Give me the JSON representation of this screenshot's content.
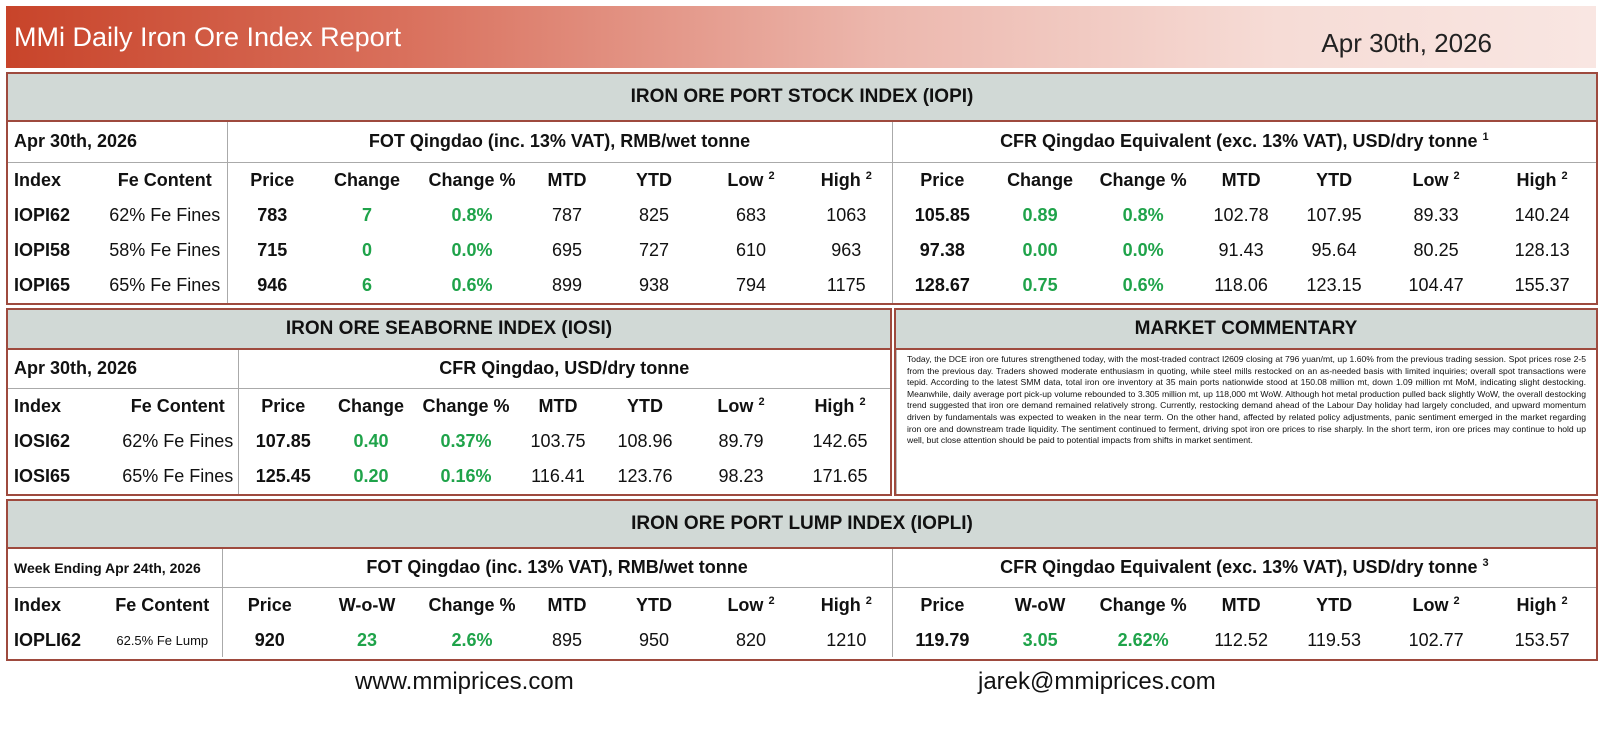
{
  "header": {
    "title": "MMi Daily Iron Ore Index Report",
    "date": "Apr 30th, 2026"
  },
  "iopi": {
    "title": "IRON ORE PORT STOCK INDEX (IOPI)",
    "date": "Apr 30th, 2026",
    "fot_title": "FOT Qingdao (inc. 13% VAT), RMB/wet tonne",
    "cfr_title": "CFR Qingdao Equivalent (exc. 13% VAT), USD/dry tonne",
    "cfr_note": "1",
    "headers": {
      "index": "Index",
      "fe": "Fe Content",
      "price": "Price",
      "change": "Change",
      "change_pct": "Change %",
      "mtd": "MTD",
      "ytd": "YTD",
      "low": "Low",
      "high": "High",
      "note": "2"
    },
    "rows": [
      {
        "index": "IOPI62",
        "fe": "62% Fe Fines",
        "fot": [
          "783",
          "7",
          "0.8%",
          "787",
          "825",
          "683",
          "1063"
        ],
        "cfr": [
          "105.85",
          "0.89",
          "0.8%",
          "102.78",
          "107.95",
          "89.33",
          "140.24"
        ]
      },
      {
        "index": "IOPI58",
        "fe": "58% Fe Fines",
        "fot": [
          "715",
          "0",
          "0.0%",
          "695",
          "727",
          "610",
          "963"
        ],
        "cfr": [
          "97.38",
          "0.00",
          "0.0%",
          "91.43",
          "95.64",
          "80.25",
          "128.13"
        ]
      },
      {
        "index": "IOPI65",
        "fe": "65% Fe Fines",
        "fot": [
          "946",
          "6",
          "0.6%",
          "899",
          "938",
          "794",
          "1175"
        ],
        "cfr": [
          "128.67",
          "0.75",
          "0.6%",
          "118.06",
          "123.15",
          "104.47",
          "155.37"
        ]
      }
    ]
  },
  "iosi": {
    "title": "IRON ORE SEABORNE INDEX (IOSI)",
    "date": "Apr 30th, 2026",
    "cfr_title": "CFR Qingdao, USD/dry tonne",
    "headers": {
      "index": "Index",
      "fe": "Fe Content",
      "price": "Price",
      "change": "Change",
      "change_pct": "Change %",
      "mtd": "MTD",
      "ytd": "YTD",
      "low": "Low",
      "high": "High",
      "note": "2"
    },
    "rows": [
      {
        "index": "IOSI62",
        "fe": "62% Fe Fines",
        "vals": [
          "107.85",
          "0.40",
          "0.37%",
          "103.75",
          "108.96",
          "89.79",
          "142.65"
        ]
      },
      {
        "index": "IOSI65",
        "fe": "65% Fe Fines",
        "vals": [
          "125.45",
          "0.20",
          "0.16%",
          "116.41",
          "123.76",
          "98.23",
          "171.65"
        ]
      }
    ]
  },
  "commentary": {
    "title": "MARKET COMMENTARY",
    "text": "Today, the DCE iron ore futures strengthened today, with the most-traded contract I2609 closing at 796 yuan/mt, up 1.60% from the previous trading session. Spot prices rose 2-5 from the previous day. Traders showed moderate enthusiasm in quoting, while steel mills restocked on an as-needed basis with limited inquiries; overall spot transactions were tepid. According to the latest SMM data, total iron ore inventory at 35 main ports nationwide stood at 150.08 million mt, down 1.09 million mt MoM, indicating slight destocking. Meanwhile, daily average port pick-up volume rebounded to 3.305 million mt, up 118,000 mt WoW. Although hot metal production pulled back slightly WoW, the overall destocking trend suggested that iron ore demand remained relatively strong. Currently, restocking demand ahead of the Labour Day holiday had largely concluded, and upward momentum driven by fundamentals was expected to weaken in the near term. On the other hand, affected by related policy adjustments, panic sentiment emerged in the market regarding iron ore and downstream trade liquidity. The sentiment continued to ferment, driving spot iron ore prices to rise sharply. In the short term, iron ore prices may continue to hold up well, but close attention should be paid to potential impacts from shifts in market sentiment."
  },
  "iopli": {
    "title": "IRON ORE PORT LUMP INDEX (IOPLI)",
    "week": "Week Ending Apr 24th, 2026",
    "fot_title": "FOT Qingdao (inc. 13% VAT), RMB/wet tonne",
    "cfr_title": "CFR Qingdao Equivalent (exc. 13% VAT), USD/dry tonne",
    "cfr_note": "3",
    "headers": {
      "index": "Index",
      "fe": "Fe Content",
      "price": "Price",
      "wow_fot": "W-o-W",
      "wow_cfr": "W-oW",
      "change_pct": "Change %",
      "mtd": "MTD",
      "ytd": "YTD",
      "low": "Low",
      "high": "High",
      "note": "2"
    },
    "rows": [
      {
        "index": "IOPLI62",
        "fe": "62.5% Fe Lump",
        "fot": [
          "920",
          "23",
          "2.6%",
          "895",
          "950",
          "820",
          "1210"
        ],
        "cfr": [
          "119.79",
          "3.05",
          "2.62%",
          "112.52",
          "119.53",
          "102.77",
          "153.57"
        ]
      }
    ]
  },
  "footer": {
    "website": "www.mmiprices.com",
    "email": "jarek@mmiprices.com"
  },
  "colors": {
    "header_start": "#c8442a",
    "header_end": "#f9e6e2",
    "section_bg": "#d1d9d6",
    "border": "#9e4a3e",
    "positive": "#1fa34a"
  }
}
